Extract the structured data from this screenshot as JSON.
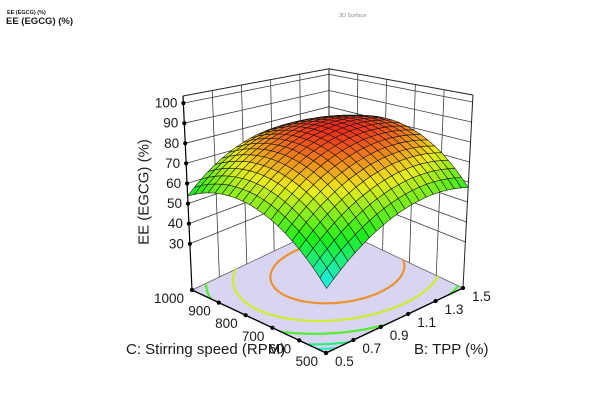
{
  "header": {
    "title_small": "EE (EGCG) (%)",
    "title_large": "EE (EGCG) (%)"
  },
  "chart_data": {
    "type": "surface3d",
    "title": "3D Surface",
    "response_label": "EE (EGCG) (%)",
    "x_axis": {
      "label": "C: Stirring speed (RPM)",
      "ticks": [
        "1000",
        "900",
        "800",
        "700",
        "600",
        "500"
      ],
      "range": [
        500,
        1000
      ]
    },
    "y_axis": {
      "label": "B: TPP (%)",
      "ticks": [
        "0.5",
        "0.7",
        "0.9",
        "1.1",
        "1.3",
        "1.5"
      ],
      "range": [
        0.5,
        1.5
      ]
    },
    "z_axis": {
      "label": "EE (EGCG) (%)",
      "ticks": [
        "100",
        "90",
        "80",
        "70",
        "60",
        "50",
        "40",
        "30"
      ],
      "range": [
        30,
        100
      ]
    },
    "surface_model": {
      "description": "quadratic response surface z(u,v); u=(C-500)/500, v=(B-0.5)/1.0; z = z_peak - curv_u*(u-peak_u)^2 - curv_v*(v-peak_v)^2",
      "z_peak": 87,
      "peak_u": 0.6,
      "peak_v": 0.67,
      "curv_u": 67.5,
      "curv_v": 50,
      "peak_at": {
        "C": 800,
        "B": 1.17,
        "EE": 87
      },
      "corner_values": [
        {
          "C": 500,
          "B": 0.5,
          "EE": 40
        },
        {
          "C": 1000,
          "B": 0.5,
          "EE": 54
        },
        {
          "C": 500,
          "B": 1.5,
          "EE": 57
        },
        {
          "C": 1000,
          "B": 1.5,
          "EE": 71
        }
      ]
    },
    "contour_levels": [
      45,
      50,
      60,
      70,
      80
    ],
    "mesh_divisions": 20,
    "colormap": {
      "z_low": 40,
      "z_high": 88,
      "hue_span": 186,
      "saturation": 85
    },
    "colors": {
      "floor_fill": "#d7d5f2",
      "mesh_stroke": "#101010",
      "wall_grid": "#3d3d3d",
      "box_edge": "#222222",
      "axis_line": "#000000",
      "text": "#1a1a1a",
      "watermark_text": "#8a8a8a"
    }
  }
}
